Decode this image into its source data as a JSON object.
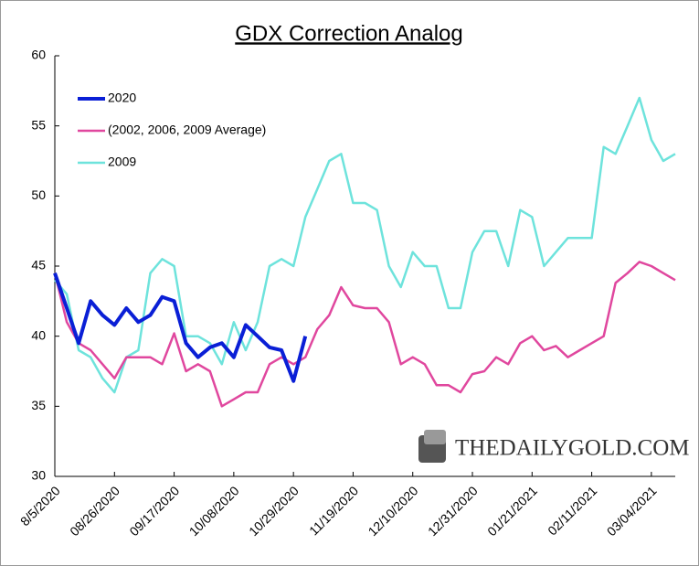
{
  "chart_data": {
    "type": "line",
    "title": "GDX Correction Analog",
    "categories": [
      "8/5/2020",
      null,
      null,
      null,
      null,
      "08/26/2020",
      null,
      null,
      null,
      null,
      "09/17/2020",
      null,
      null,
      null,
      null,
      "10/08/2020",
      null,
      null,
      null,
      null,
      "10/29/2020",
      null,
      null,
      null,
      null,
      "11/19/2020",
      null,
      null,
      null,
      null,
      "12/10/2020",
      null,
      null,
      null,
      null,
      "12/31/2020",
      null,
      null,
      null,
      null,
      "01/21/2021",
      null,
      null,
      null,
      null,
      "02/11/2021",
      null,
      null,
      null,
      null,
      "03/04/2021",
      null,
      null
    ],
    "series": [
      {
        "name": "2020",
        "color": "#0a1fd6",
        "width": 4,
        "values": [
          44.5,
          42,
          39.5,
          42.5,
          41.5,
          40.8,
          42,
          41,
          41.5,
          42.8,
          42.5,
          39.5,
          38.5,
          39.2,
          39.5,
          38.5,
          40.8,
          40,
          39.2,
          39,
          36.8,
          40,
          null,
          null,
          null,
          null,
          null,
          null,
          null,
          null,
          null,
          null,
          null,
          null,
          null,
          null,
          null,
          null,
          null,
          null,
          null,
          null,
          null,
          null,
          null,
          null,
          null,
          null,
          null,
          null,
          null,
          null,
          null
        ]
      },
      {
        "name": "(2002, 2006, 2009 Average)",
        "color": "#e0479e",
        "width": 2.5,
        "values": [
          44.5,
          41,
          39.5,
          39,
          38,
          37,
          38.5,
          38.5,
          38.5,
          38,
          40.2,
          37.5,
          38,
          37.5,
          35,
          35.5,
          36,
          36,
          38,
          38.5,
          38,
          38.5,
          40.5,
          41.5,
          43.5,
          42.2,
          42,
          42,
          41,
          38,
          38.5,
          38,
          36.5,
          36.5,
          36,
          37.3,
          37.5,
          38.5,
          38,
          39.5,
          40,
          39,
          39.3,
          38.5,
          39,
          39.5,
          40,
          43.8,
          44.5,
          45.3,
          45,
          44.5,
          44
        ]
      },
      {
        "name": "2009",
        "color": "#6ee3dc",
        "width": 2.5,
        "values": [
          44,
          43,
          39,
          38.5,
          37,
          36,
          38.5,
          39,
          44.5,
          45.5,
          45,
          40,
          40,
          39.5,
          38,
          41,
          39,
          41,
          45,
          45.5,
          45,
          48.5,
          50.5,
          52.5,
          53,
          49.5,
          49.5,
          49,
          45,
          43.5,
          46,
          45,
          45,
          42,
          42,
          46,
          47.5,
          47.5,
          45,
          49,
          48.5,
          45,
          46,
          47,
          47,
          47,
          53.5,
          53,
          55,
          57,
          54,
          52.5,
          53
        ]
      }
    ],
    "ylim": [
      30,
      60
    ],
    "yticks": [
      30,
      35,
      40,
      45,
      50,
      55,
      60
    ],
    "grid": false,
    "legend": "top-left",
    "watermark": "THEDAILYGOLD.COM"
  }
}
